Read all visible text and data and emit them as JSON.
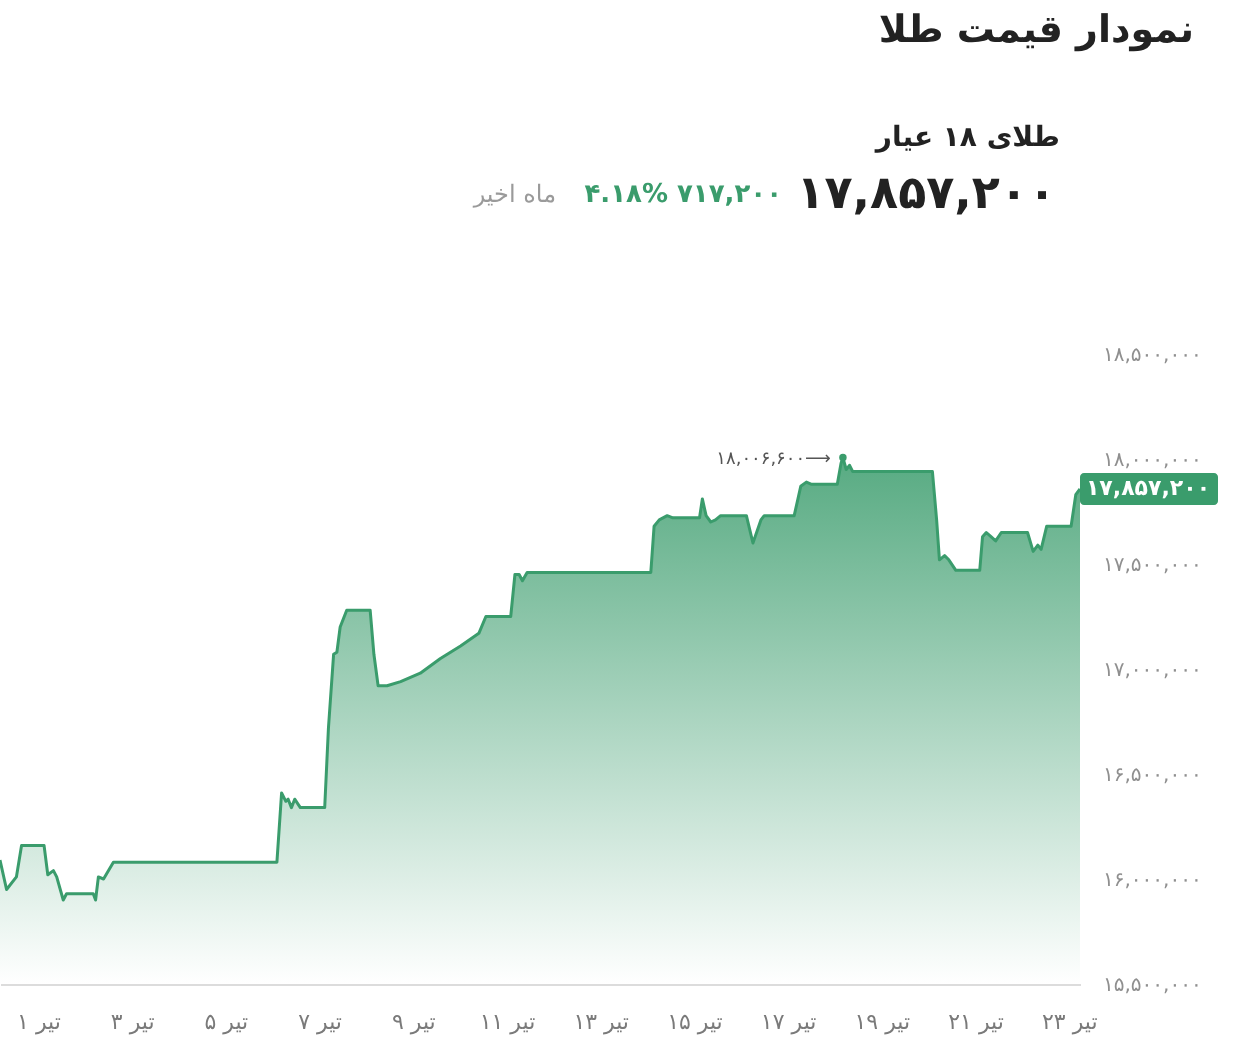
{
  "chart_data": {
    "type": "area",
    "title": "نمودار قیمت طلا",
    "subtitle": "طلای ۱۸ عیار",
    "x": [
      0.19,
      0.33,
      0.54,
      0.65,
      1.13,
      1.21,
      1.33,
      1.4,
      1.54,
      1.61,
      2.18,
      2.23,
      2.29,
      2.4,
      2.61,
      6.1,
      6.2,
      6.29,
      6.34,
      6.41,
      6.48,
      6.6,
      7.12,
      7.2,
      7.31,
      7.38,
      7.45,
      7.59,
      8.09,
      8.17,
      8.26,
      8.45,
      8.74,
      9.16,
      9.59,
      10.02,
      10.41,
      10.56,
      11.09,
      11.18,
      11.27,
      11.34,
      11.44,
      14.08,
      14.15,
      14.26,
      14.43,
      14.55,
      15.12,
      15.18,
      15.26,
      15.36,
      15.46,
      15.57,
      16.12,
      16.26,
      16.43,
      16.5,
      17.14,
      17.28,
      17.4,
      17.5,
      18.06,
      18.14,
      18.18,
      18.25,
      18.32,
      18.39,
      18.49,
      20.09,
      20.18,
      20.24,
      20.35,
      20.44,
      20.59,
      21.1,
      21.16,
      21.24,
      21.34,
      21.44,
      21.56,
      22.12,
      22.24,
      22.34,
      22.41,
      22.53,
      23.05,
      23.15,
      23.24
    ],
    "series": [
      {
        "color": "#3a9c6c",
        "values": [
          16090000,
          15950000,
          16010000,
          16160000,
          16160000,
          16020000,
          16040000,
          16010000,
          15900000,
          15930000,
          15930000,
          15900000,
          16010000,
          16000000,
          16080000,
          16080000,
          16410000,
          16370000,
          16380000,
          16340000,
          16380000,
          16340000,
          16340000,
          16720000,
          17070000,
          17080000,
          17200000,
          17280000,
          17280000,
          17070000,
          16920000,
          16920000,
          16940000,
          16980000,
          17050000,
          17110000,
          17170000,
          17250000,
          17250000,
          17450000,
          17450000,
          17420000,
          17460000,
          17460000,
          17680000,
          17710000,
          17730000,
          17720000,
          17720000,
          17810000,
          17730000,
          17700000,
          17710000,
          17730000,
          17730000,
          17600000,
          17710000,
          17730000,
          17730000,
          17870000,
          17890000,
          17880000,
          17880000,
          17980000,
          18006600,
          17950000,
          17970000,
          17940000,
          17940000,
          17940000,
          17710000,
          17520000,
          17540000,
          17520000,
          17470000,
          17470000,
          17630000,
          17650000,
          17630000,
          17610000,
          17650000,
          17650000,
          17560000,
          17590000,
          17570000,
          17680000,
          17680000,
          17830000,
          17857200
        ]
      }
    ],
    "xlim": [
      0.19,
      23.24
    ],
    "xticks": [
      {
        "value": 1,
        "label": "۱ تیر"
      },
      {
        "value": 3,
        "label": "۳ تیر"
      },
      {
        "value": 5,
        "label": "۵ تیر"
      },
      {
        "value": 7,
        "label": "۷ تیر"
      },
      {
        "value": 9,
        "label": "۹ تیر"
      },
      {
        "value": 11,
        "label": "۱۱ تیر"
      },
      {
        "value": 13,
        "label": "۱۳ تیر"
      },
      {
        "value": 15,
        "label": "۱۵ تیر"
      },
      {
        "value": 17,
        "label": "۱۷ تیر"
      },
      {
        "value": 19,
        "label": "۱۹ تیر"
      },
      {
        "value": 21,
        "label": "۲۱ تیر"
      },
      {
        "value": 23,
        "label": "۲۳ تیر"
      }
    ],
    "ylim": [
      15500000,
      18500000
    ],
    "yticks": [
      {
        "value": 15500000,
        "label": "۱۵,۵۰۰,۰۰۰"
      },
      {
        "value": 16000000,
        "label": "۱۶,۰۰۰,۰۰۰"
      },
      {
        "value": 16500000,
        "label": "۱۶,۵۰۰,۰۰۰"
      },
      {
        "value": 17000000,
        "label": "۱۷,۰۰۰,۰۰۰"
      },
      {
        "value": 17500000,
        "label": "۱۷,۵۰۰,۰۰۰"
      },
      {
        "value": 18000000,
        "label": "۱۸,۰۰۰,۰۰۰"
      },
      {
        "value": 18500000,
        "label": "۱۸,۵۰۰,۰۰۰"
      }
    ],
    "grid": false,
    "annotations": [
      "۱۷,۸۵۷,۲۰۰",
      "۷۱۷,۲۰۰",
      "۴.۱۸%",
      "ماه اخیر",
      {
        "text": "۱۸,۰۰۶,۶۰۰⟶",
        "x": 18.18,
        "y": 18006600
      },
      {
        "text": "۱۷,۸۵۷,۲۰۰",
        "x": 23.24,
        "y": 17857200
      }
    ]
  }
}
